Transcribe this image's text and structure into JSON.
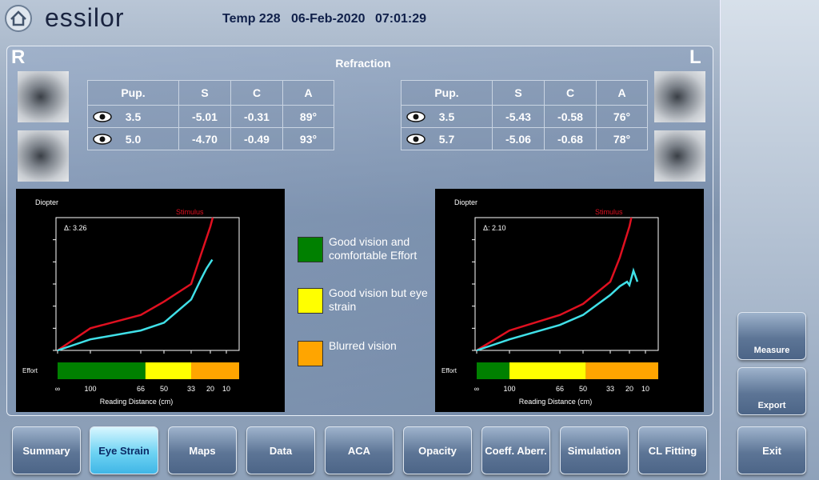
{
  "header": {
    "logo": "essilor",
    "patient": "Temp 228",
    "date": "06-Feb-2020",
    "time": "07:01:29"
  },
  "panel": {
    "title": "Refraction",
    "right_eye": "R",
    "left_eye": "L"
  },
  "tables": [
    {
      "columns": [
        "Pup.",
        "S",
        "C",
        "A"
      ],
      "rows": [
        [
          "3.5",
          "-5.01",
          "-0.31",
          "89°"
        ],
        [
          "5.0",
          "-4.70",
          "-0.49",
          "93°"
        ]
      ]
    },
    {
      "columns": [
        "Pup.",
        "S",
        "C",
        "A"
      ],
      "rows": [
        [
          "3.5",
          "-5.43",
          "-0.58",
          "76°"
        ],
        [
          "5.7",
          "-5.06",
          "-0.68",
          "78°"
        ]
      ]
    }
  ],
  "chart_data": [
    {
      "type": "line",
      "y_label": "Diopter",
      "x_label": "Reading Distance (cm)",
      "effort_label": "Effort",
      "annotation": "Δ: 3.26",
      "xlim": [
        0,
        14
      ],
      "xticks": [
        {
          "value": 0,
          "label": "∞"
        },
        {
          "value": 1,
          "label": "100"
        },
        {
          "value": 1.5,
          "label": "66"
        },
        {
          "value": 2,
          "label": "50"
        },
        {
          "value": 3,
          "label": "33"
        },
        {
          "value": 5,
          "label": "20"
        },
        {
          "value": 10,
          "label": "10"
        }
      ],
      "ylim": [
        0,
        6
      ],
      "yticks": [
        0,
        1,
        2,
        3,
        4,
        5
      ],
      "series": [
        {
          "name": "Stimulus",
          "color": "#e01020",
          "x": [
            0,
            1,
            1.5,
            2,
            3,
            4,
            5,
            5.75
          ],
          "values": [
            0,
            1.0,
            1.6,
            2.2,
            3.0,
            4.3,
            5.6,
            6
          ]
        },
        {
          "color": "#40e0e8",
          "x": [
            0,
            1,
            1.5,
            2,
            3,
            4,
            4.6,
            5.6
          ],
          "values": [
            0,
            0.5,
            0.9,
            1.25,
            2.3,
            3.2,
            3.7,
            4.1
          ]
        }
      ],
      "effort_bands": [
        {
          "color": "#008000",
          "end": 1.6
        },
        {
          "color": "#ffff00",
          "end": 3
        },
        {
          "color": "#ffa500",
          "end": 14
        }
      ]
    },
    {
      "type": "line",
      "y_label": "Diopter",
      "x_label": "Reading Distance (cm)",
      "effort_label": "Effort",
      "annotation": "Δ: 2.10",
      "xlim": [
        0,
        14
      ],
      "xticks": [
        {
          "value": 0,
          "label": "∞"
        },
        {
          "value": 1,
          "label": "100"
        },
        {
          "value": 1.5,
          "label": "66"
        },
        {
          "value": 2,
          "label": "50"
        },
        {
          "value": 3,
          "label": "33"
        },
        {
          "value": 5,
          "label": "20"
        },
        {
          "value": 10,
          "label": "10"
        }
      ],
      "ylim": [
        0,
        6
      ],
      "yticks": [
        0,
        1,
        2,
        3,
        4,
        5
      ],
      "series": [
        {
          "name": "Stimulus",
          "color": "#e01020",
          "x": [
            0,
            1,
            1.5,
            2,
            3,
            4,
            5,
            5.6
          ],
          "values": [
            0,
            0.9,
            1.6,
            2.1,
            3.1,
            4.2,
            5.6,
            6
          ]
        },
        {
          "color": "#40e0e8",
          "x": [
            0,
            1,
            1.5,
            2,
            3,
            4,
            4.75,
            5,
            6.25,
            7.5
          ],
          "values": [
            0,
            0.5,
            1.15,
            1.6,
            2.5,
            2.9,
            3.1,
            2.95,
            3.6,
            3.1
          ]
        }
      ],
      "effort_bands": [
        {
          "color": "#008000",
          "end": 1.0
        },
        {
          "color": "#ffff00",
          "end": 2.1
        },
        {
          "color": "#ffa500",
          "end": 14
        }
      ]
    }
  ],
  "legend": [
    {
      "color": "#008000",
      "label": "Good vision and comfortable Effort"
    },
    {
      "color": "#ffff00",
      "label": "Good vision but eye strain"
    },
    {
      "color": "#ffa500",
      "label": "Blurred vision"
    }
  ],
  "tabs": [
    "Summary",
    "Eye Strain",
    "Maps",
    "Data",
    "ACA",
    "Opacity",
    "Coeff. Aberr.",
    "Simulation",
    "CL Fitting"
  ],
  "active_tab": 1,
  "side_buttons": [
    "Measure",
    "Export"
  ],
  "exit": "Exit"
}
